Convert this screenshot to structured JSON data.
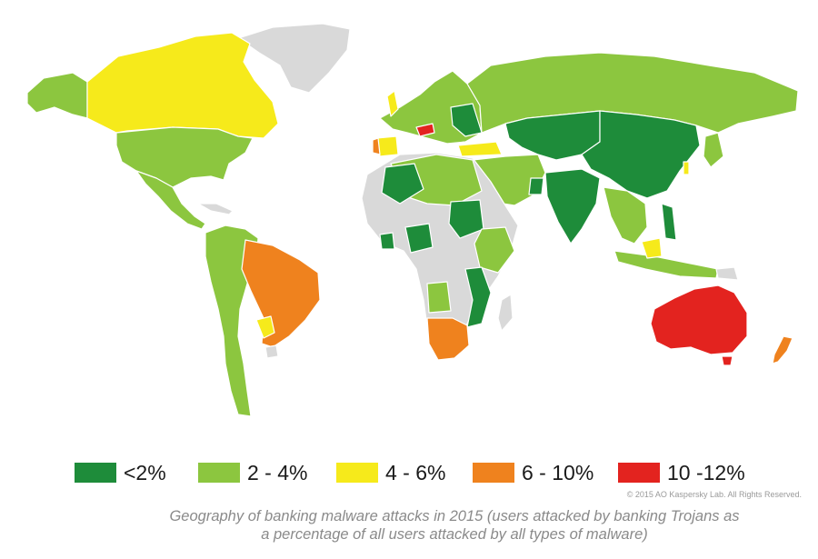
{
  "map": {
    "colors": {
      "lt2": "#1e8c3a",
      "2to4": "#8cc63f",
      "4to6": "#f6ea1b",
      "6to10": "#ef821e",
      "10to12": "#e3231f",
      "nodata": "#d9d9d9"
    }
  },
  "legend": [
    {
      "label": "<2%",
      "color": "#1e8c3a"
    },
    {
      "label": "2 - 4%",
      "color": "#8cc63f"
    },
    {
      "label": "4 - 6%",
      "color": "#f6ea1b"
    },
    {
      "label": "6 - 10%",
      "color": "#ef821e"
    },
    {
      "label": "10 -12%",
      "color": "#e3231f"
    }
  ],
  "copyright": "© 2015 AO Kaspersky Lab. All Rights Reserved.",
  "caption": {
    "line1": "Geography of banking malware attacks in 2015 (users attacked by banking Trojans as",
    "line2": "a percentage of all users attacked by all types of malware)"
  }
}
